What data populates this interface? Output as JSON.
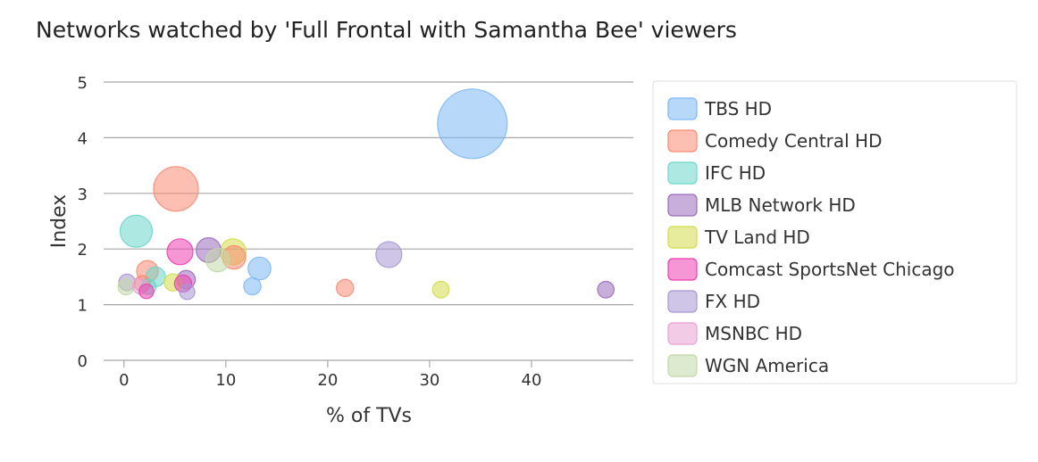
{
  "chart_data": {
    "type": "scatter",
    "title": "Networks watched by 'Full Frontal with Samantha Bee' viewers",
    "xlabel": "% of TVs",
    "ylabel": "Index",
    "xlim": [
      -2,
      50
    ],
    "ylim": [
      0,
      5
    ],
    "x_ticks": [
      "0",
      "10",
      "20",
      "30",
      "40"
    ],
    "y_ticks": [
      "0",
      "1",
      "2",
      "3",
      "4",
      "5"
    ],
    "grid": true,
    "legend_position": "right",
    "series": [
      {
        "name": "TBS HD",
        "color": "#7db8f5",
        "points": [
          {
            "x": 34.2,
            "y": 4.25,
            "size": 10
          },
          {
            "x": 13.3,
            "y": 1.65,
            "size": 2.5
          },
          {
            "x": 12.6,
            "y": 1.33,
            "size": 1.6
          }
        ]
      },
      {
        "name": "Comedy Central HD",
        "color": "#f98a73",
        "points": [
          {
            "x": 5.1,
            "y": 3.08,
            "size": 6
          },
          {
            "x": 2.3,
            "y": 1.6,
            "size": 2.3
          },
          {
            "x": 21.7,
            "y": 1.3,
            "size": 1.6
          },
          {
            "x": 1.8,
            "y": 1.38,
            "size": 1.4
          },
          {
            "x": 10.8,
            "y": 1.85,
            "size": 2.6
          }
        ]
      },
      {
        "name": "IFC HD",
        "color": "#6cd6ca",
        "points": [
          {
            "x": 1.2,
            "y": 2.32,
            "size": 4
          },
          {
            "x": 3.1,
            "y": 1.5,
            "size": 2.0
          },
          {
            "x": 2.4,
            "y": 1.32,
            "size": 1.3
          }
        ]
      },
      {
        "name": "MLB Network HD",
        "color": "#9a6bbd",
        "points": [
          {
            "x": 8.3,
            "y": 1.98,
            "size": 2.8
          },
          {
            "x": 6.1,
            "y": 1.45,
            "size": 1.8
          },
          {
            "x": 47.3,
            "y": 1.27,
            "size": 1.5
          }
        ]
      },
      {
        "name": "TV Land HD",
        "color": "#d1dc4a",
        "points": [
          {
            "x": 10.7,
            "y": 1.95,
            "size": 3.0
          },
          {
            "x": 4.8,
            "y": 1.4,
            "size": 1.6
          },
          {
            "x": 31.1,
            "y": 1.27,
            "size": 1.5
          }
        ]
      },
      {
        "name": "Comcast SportsNet Chicago",
        "color": "#ee3fb0",
        "points": [
          {
            "x": 5.5,
            "y": 1.95,
            "size": 3.0
          },
          {
            "x": 5.8,
            "y": 1.38,
            "size": 1.6
          },
          {
            "x": 2.2,
            "y": 1.24,
            "size": 1.2
          }
        ]
      },
      {
        "name": "FX HD",
        "color": "#a897d3",
        "points": [
          {
            "x": 26.0,
            "y": 1.9,
            "size": 3.0
          },
          {
            "x": 0.3,
            "y": 1.4,
            "size": 1.5
          },
          {
            "x": 6.2,
            "y": 1.23,
            "size": 1.3
          }
        ]
      },
      {
        "name": "MSNBC HD",
        "color": "#e8a2d2",
        "points": [
          {
            "x": 1.6,
            "y": 1.33,
            "size": 1.3
          }
        ]
      },
      {
        "name": "WGN America",
        "color": "#c2d8a8",
        "points": [
          {
            "x": 9.2,
            "y": 1.8,
            "size": 2.6
          },
          {
            "x": 0.2,
            "y": 1.32,
            "size": 1.4
          }
        ]
      }
    ]
  }
}
